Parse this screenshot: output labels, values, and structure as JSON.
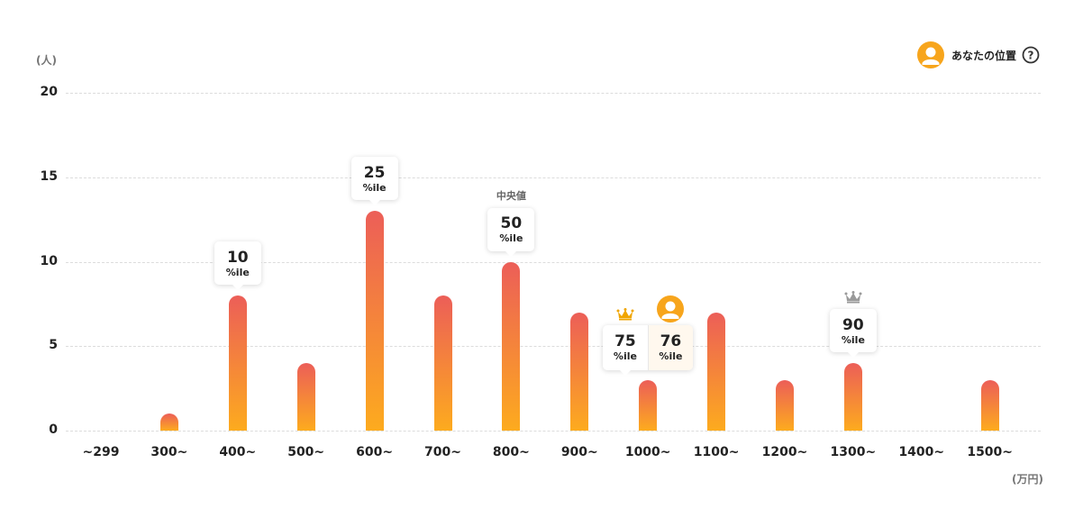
{
  "legend": {
    "label": "あなたの位置"
  },
  "colors": {
    "bar_top": "#ec5e58",
    "bar_bottom": "#fdab1e",
    "avatar": "#f7a51c",
    "crown_gold": "#f0a500",
    "crown_gray": "#9a9a9a"
  },
  "chart_data": {
    "type": "bar",
    "y_unit": "(人)",
    "x_unit": "(万円)",
    "ylim": [
      0,
      20
    ],
    "yticks": [
      "0",
      "5",
      "10",
      "15",
      "20"
    ],
    "grid": true,
    "legend_position": "top-right",
    "categories": [
      "~299",
      "300~",
      "400~",
      "500~",
      "600~",
      "700~",
      "800~",
      "900~",
      "1000~",
      "1100~",
      "1200~",
      "1300~",
      "1400~",
      "1500~"
    ],
    "values": [
      0,
      1,
      8,
      4,
      13,
      8,
      10,
      7,
      3,
      7,
      3,
      4,
      0,
      3
    ],
    "percentile_markers": [
      {
        "category": "400~",
        "value": "10",
        "label": "%ile"
      },
      {
        "category": "600~",
        "value": "25",
        "label": "%ile"
      },
      {
        "category": "800~",
        "value": "50",
        "label": "%ile",
        "note": "中央値"
      },
      {
        "category": "1000~",
        "value": "75",
        "label": "%ile",
        "crown": "gold"
      },
      {
        "category": "1300~",
        "value": "90",
        "label": "%ile",
        "crown": "gray"
      }
    ],
    "your_position": {
      "category": "1000~",
      "value": "76",
      "label": "%ile"
    }
  }
}
